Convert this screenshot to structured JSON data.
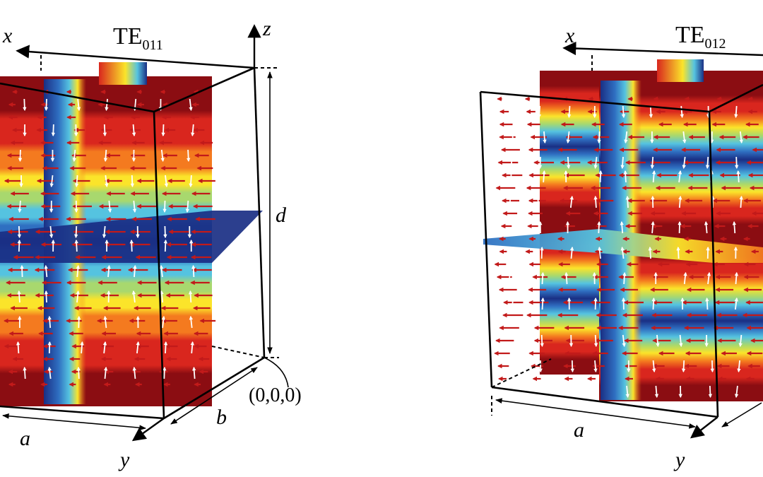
{
  "panels": [
    {
      "id": "te011",
      "mode": "TE",
      "mode_sub": "011",
      "n_z": 1,
      "axes": {
        "x": "x",
        "y": "y",
        "z": "z"
      },
      "dims": {
        "a": "a",
        "b": "b",
        "d": "d"
      },
      "origin": "(0,0,0)"
    },
    {
      "id": "te012",
      "mode": "TE",
      "mode_sub": "012",
      "n_z": 2,
      "axes": {
        "x": "x",
        "y": "y"
      },
      "dims": {
        "a": "a"
      }
    }
  ],
  "colormap": [
    "#8b0d12",
    "#d9261e",
    "#f47a1f",
    "#fbe42a",
    "#a8d86e",
    "#55c3e0",
    "#2f6fc1",
    "#1a2f84"
  ],
  "arrow_colors": {
    "horizontal": "#c21a1a",
    "vertical": "#ffffff"
  }
}
